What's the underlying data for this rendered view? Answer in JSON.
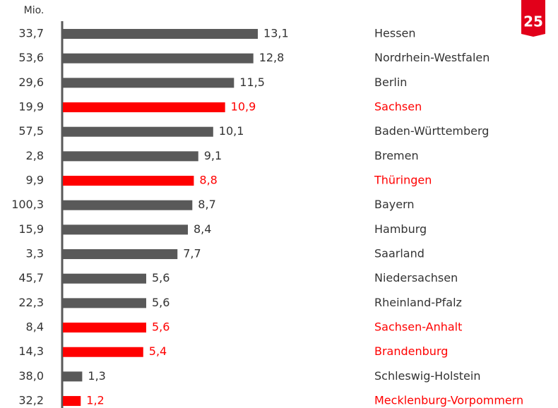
{
  "chart_data": {
    "type": "bar",
    "orientation": "horizontal",
    "left_header": "Mio.",
    "left_labels": [
      "33,7",
      "53,6",
      "29,6",
      "19,9",
      "57,5",
      "2,8",
      "9,9",
      "100,3",
      "15,9",
      "3,3",
      "45,7",
      "22,3",
      "8,4",
      "14,3",
      "38,0",
      "32,2"
    ],
    "categories": [
      "Hessen",
      "Nordrhein-Westfalen",
      "Berlin",
      "Sachsen",
      "Baden-Württemberg",
      "Bremen",
      "Thüringen",
      "Bayern",
      "Hamburg",
      "Saarland",
      "Niedersachsen",
      "Rheinland-Pfalz",
      "Sachsen-Anhalt",
      "Brandenburg",
      "Schleswig-Holstein",
      "Mecklenburg-Vorpommern"
    ],
    "values": [
      13.1,
      12.8,
      11.5,
      10.9,
      10.1,
      9.1,
      8.8,
      8.7,
      8.4,
      7.7,
      5.6,
      5.6,
      5.6,
      5.4,
      1.3,
      1.2
    ],
    "value_labels": [
      "13,1",
      "12,8",
      "11,5",
      "10,9",
      "10,1",
      "9,1",
      "8,8",
      "8,7",
      "8,4",
      "7,7",
      "5,6",
      "5,6",
      "5,6",
      "5,4",
      "1,3",
      "1,2"
    ],
    "colors": [
      "#595959",
      "#595959",
      "#595959",
      "#ff0000",
      "#595959",
      "#595959",
      "#ff0000",
      "#595959",
      "#595959",
      "#595959",
      "#595959",
      "#595959",
      "#ff0000",
      "#ff0000",
      "#595959",
      "#ff0000"
    ],
    "logo": "25"
  }
}
